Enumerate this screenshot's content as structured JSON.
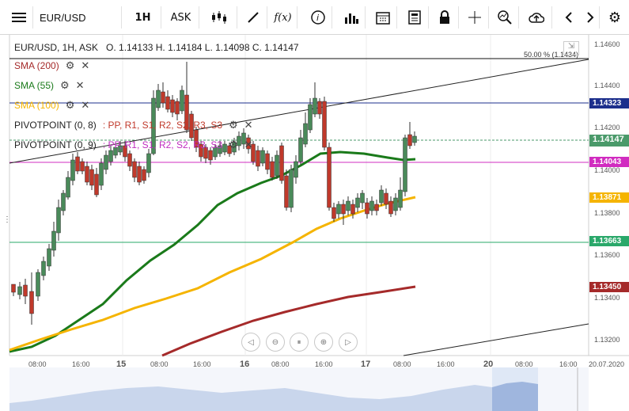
{
  "toolbar": {
    "symbol": "EUR/USD",
    "interval": "1H",
    "price_type": "ASK",
    "icons": [
      "menu-icon",
      "candles-icon",
      "draw-icon",
      "fx-icon",
      "info-icon",
      "bars-icon",
      "calendar-icon",
      "notes-icon",
      "lock-icon",
      "crosshair-icon",
      "zoom-icon",
      "upload-icon",
      "prev-icon",
      "next-icon",
      "settings-icon"
    ]
  },
  "header": {
    "title": "EUR/USD, 1H, ASK",
    "ohlc": "O. 1.14133 H. 1.14184 L. 1.14098 C. 1.14147",
    "fib_label": "50.00 % (1.1434)"
  },
  "legend": [
    {
      "label": "SMA (200)",
      "color": "#a52a2a"
    },
    {
      "label": "SMA (55)",
      "color": "#1a7a1a"
    },
    {
      "label": "SMA (100)",
      "color": "#f5b400"
    },
    {
      "label": "PIVOTPOINT (0, 8)",
      "suffix": ": PP, R1, S1, R2, S2, R3, S3"
    },
    {
      "label": "PIVOTPOINT (0, 9)",
      "suffix": ": PP, R1, S1, R2, S2, R3, S3"
    }
  ],
  "price_axis": [
    "1.14600",
    "1.14400",
    "1.14200",
    "1.14000",
    "1.13800",
    "1.13600",
    "1.13400",
    "1.13200"
  ],
  "price_tags": [
    {
      "value": "1.14323",
      "color": "#1d2f8c"
    },
    {
      "value": "1.14147",
      "color": "#4a9a6a"
    },
    {
      "value": "1.14043",
      "color": "#d12cc0"
    },
    {
      "value": "1.13871",
      "color": "#f5b400"
    },
    {
      "value": "1.13663",
      "color": "#2aa86a"
    },
    {
      "value": "1.13450",
      "color": "#a52a2a"
    }
  ],
  "time_axis": [
    "08:00",
    "16:00",
    "15",
    "08:00",
    "16:00",
    "16",
    "08:00",
    "16:00",
    "17",
    "08:00",
    "16:00",
    "20",
    "08:00",
    "16:00",
    "20.07.2020"
  ],
  "colors": {
    "up": "#4a8a5a",
    "down": "#c0392b",
    "sma200": "#a52a2a",
    "sma55": "#1a7a1a",
    "sma100": "#f5b400"
  },
  "nav_icons": [
    "scroll-left-icon",
    "zoom-out-icon",
    "reset-icon",
    "zoom-in-icon",
    "scroll-right-icon"
  ]
}
